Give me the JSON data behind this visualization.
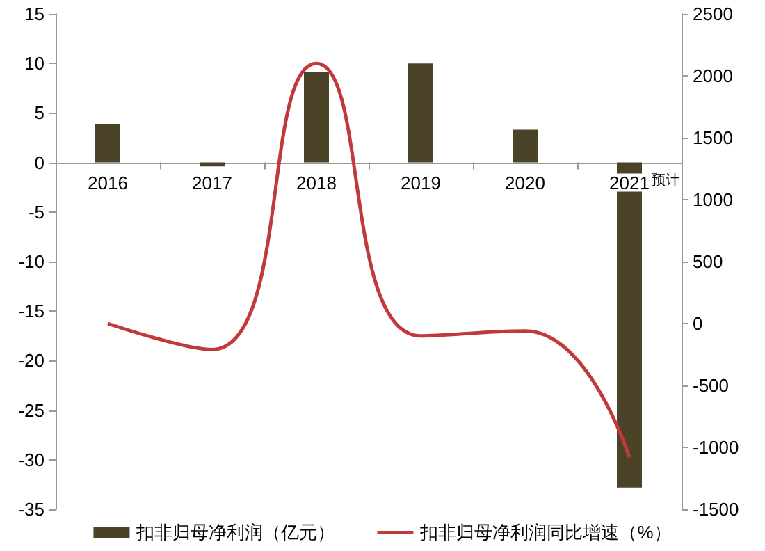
{
  "chart_data": {
    "type": "bar",
    "categories": [
      "2016",
      "2017",
      "2018",
      "2019",
      "2020",
      "2021"
    ],
    "series": [
      {
        "name": "扣非归母净利润（亿元）",
        "color": "#4a4328",
        "values": [
          3.9,
          -0.4,
          9.1,
          10.0,
          3.3,
          -32.8
        ]
      },
      {
        "name": "扣非归母净利润同比增速（%）",
        "type": "line",
        "axis": "y2",
        "color": "#c0393b",
        "values": [
          0,
          -210,
          2100,
          -100,
          -60,
          -1080
        ]
      }
    ],
    "ylim": [
      -35,
      15
    ],
    "yticks": [
      -35,
      -30,
      -25,
      -20,
      -15,
      -10,
      -5,
      0,
      5,
      10,
      15
    ],
    "y2lim": [
      -1500,
      2500
    ],
    "y2ticks": [
      -1500,
      -1000,
      -500,
      0,
      500,
      1000,
      1500,
      2000,
      2500
    ],
    "annotations": [
      {
        "text": "预计",
        "x": "2021",
        "y": 0
      }
    ],
    "marker": "none",
    "grid": false,
    "legend": "bottom"
  }
}
